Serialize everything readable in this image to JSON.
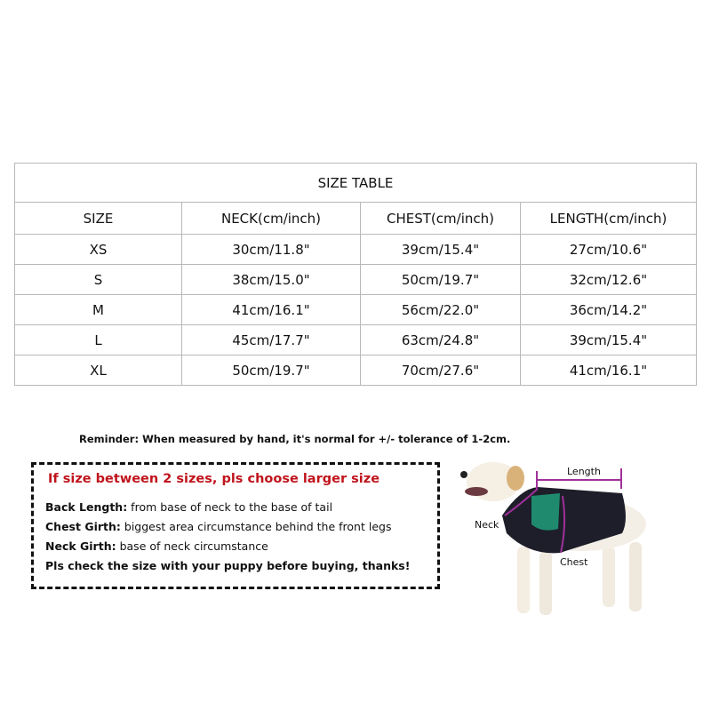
{
  "table": {
    "title": "SIZE TABLE",
    "headers": [
      "SIZE",
      "NECK(cm/inch)",
      "CHEST(cm/inch)",
      "LENGTH(cm/inch)"
    ],
    "rows": [
      [
        "XS",
        "30cm/11.8\"",
        "39cm/15.4\"",
        "27cm/10.6\""
      ],
      [
        "S",
        "38cm/15.0\"",
        "50cm/19.7\"",
        "32cm/12.6\""
      ],
      [
        "M",
        "41cm/16.1\"",
        "56cm/22.0\"",
        "36cm/14.2\""
      ],
      [
        "L",
        "45cm/17.7\"",
        "63cm/24.8\"",
        "39cm/15.4\""
      ],
      [
        "XL",
        "50cm/19.7\"",
        "70cm/27.6\"",
        "41cm/16.1\""
      ]
    ]
  },
  "reminder": "Reminder: When measured by hand, it's normal for +/- tolerance of 1-2cm.",
  "notes": {
    "headline": "If size between  2 sizes, pls choose larger size",
    "headline_color": "#c0141c",
    "items": [
      {
        "term": "Back Length:",
        "desc": " from base of neck to the base of tail"
      },
      {
        "term": "Chest Girth:",
        "desc": " biggest area circumstance behind the front legs"
      },
      {
        "term": "Neck Girth:",
        "desc": " base of neck circumstance"
      }
    ],
    "closing": "Pls check the size with your puppy before buying, thanks!"
  },
  "diagram": {
    "length_label": "Length",
    "neck_label": "Neck",
    "chest_label": "Chest",
    "coat_colors": {
      "body": "#1e1e2a",
      "panel": "#1f8a6e",
      "measure": "#a0309a"
    }
  }
}
